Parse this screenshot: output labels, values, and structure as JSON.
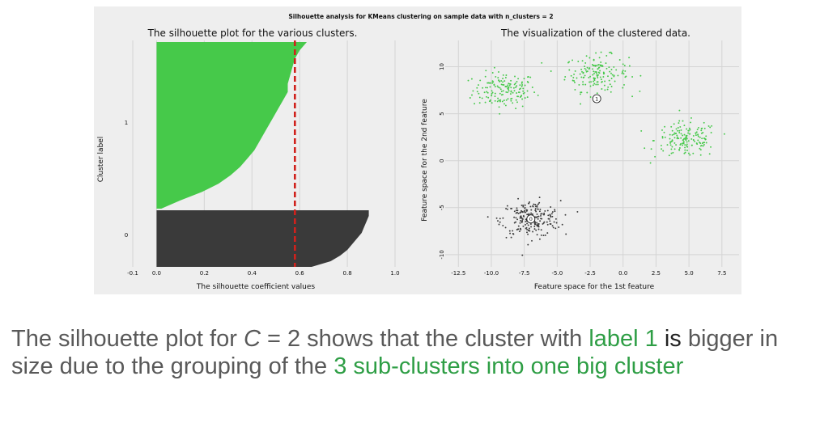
{
  "suptitle": "Silhouette analysis for KMeans clustering on sample data with n_clusters = 2",
  "colors": {
    "figure_bg": "#eeeeee",
    "grid": "#d4d4d4",
    "cluster_1": "#46c94a",
    "cluster_0": "#3a3a3a",
    "average_line": "#d0211c",
    "caption_gray": "#595959",
    "caption_green": "#2e9e45"
  },
  "chart_data": [
    {
      "type": "area",
      "title": "The silhouette plot for the various clusters.",
      "xlabel": "The silhouette coefficient values",
      "ylabel": "Cluster label",
      "xlim": [
        -0.1,
        1.0
      ],
      "xticks": [
        "-0.1",
        "0.0",
        "0.2",
        "0.4",
        "0.6",
        "0.8",
        "1.0"
      ],
      "xtick_values": [
        -0.1,
        0.0,
        0.2,
        0.4,
        0.6,
        0.8,
        1.0
      ],
      "yticks": [
        "0",
        "1"
      ],
      "grid": true,
      "average_silhouette": 0.58,
      "series": [
        {
          "label": "1",
          "sizes": [
            0.63,
            0.6,
            0.58,
            0.57,
            0.56,
            0.55,
            0.55,
            0.53,
            0.51,
            0.49,
            0.47,
            0.45,
            0.43,
            0.41,
            0.38,
            0.35,
            0.31,
            0.26,
            0.19,
            0.1,
            0.02
          ],
          "color": "#46c94a"
        },
        {
          "label": "0",
          "sizes": [
            0.89,
            0.89,
            0.88,
            0.87,
            0.86,
            0.84,
            0.82,
            0.8,
            0.77,
            0.73,
            0.65
          ],
          "color": "#3a3a3a"
        }
      ]
    },
    {
      "type": "scatter",
      "title": "The visualization of the clustered data.",
      "xlabel": "Feature space for the 1st feature",
      "ylabel": "Feature space for the 2nd feature",
      "xlim": [
        -13.5,
        8.8
      ],
      "ylim": [
        -11.3,
        12.8
      ],
      "xticks": [
        "-12.5",
        "-10.0",
        "-7.5",
        "-5.0",
        "-2.5",
        "0.0",
        "2.5",
        "5.0",
        "7.5"
      ],
      "xtick_values": [
        -12.5,
        -10.0,
        -7.5,
        -5.0,
        -2.5,
        0.0,
        2.5,
        5.0,
        7.5
      ],
      "yticks": [
        "10",
        "5",
        "0",
        "-5",
        "-10"
      ],
      "ytick_values": [
        10,
        5,
        0,
        -5,
        -10
      ],
      "grid": true,
      "groups": [
        {
          "cluster": 1,
          "center": [
            -9.0,
            7.5
          ],
          "spread": [
            1.5,
            1.2
          ],
          "count": 160,
          "color": "#46c94a"
        },
        {
          "cluster": 1,
          "center": [
            -2.0,
            9.3
          ],
          "spread": [
            1.5,
            1.2
          ],
          "count": 160,
          "color": "#46c94a"
        },
        {
          "cluster": 1,
          "center": [
            4.8,
            2.2
          ],
          "spread": [
            1.5,
            1.2
          ],
          "count": 160,
          "color": "#46c94a"
        },
        {
          "cluster": 0,
          "center": [
            -7.0,
            -6.2
          ],
          "spread": [
            1.4,
            1.2
          ],
          "count": 220,
          "color": "#3a3a3a"
        }
      ],
      "centers": [
        {
          "label": "0",
          "x": -7.0,
          "y": -6.2
        },
        {
          "label": "1",
          "x": -2.0,
          "y": 6.6
        }
      ]
    }
  ],
  "caption": {
    "part1": "The silhouette plot for ",
    "var": "C",
    "part2": " = 2 shows that the cluster with ",
    "hl1": "label 1",
    "part3": " is",
    "part4": " bigger in size due to the grouping of the ",
    "hl2": "3 sub-clusters into one big cluster"
  }
}
